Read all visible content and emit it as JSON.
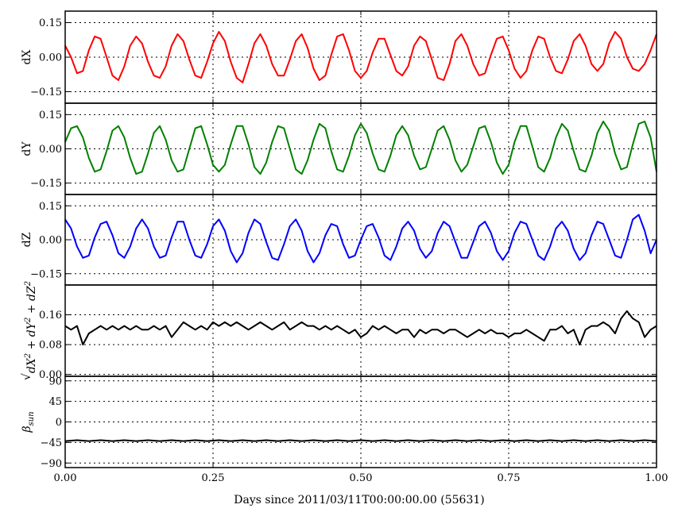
{
  "chart_data": {
    "type": "line",
    "xlabel": "Days since 2011/03/11T00:00:00.00 (55631)",
    "xlim": [
      0,
      1
    ],
    "xticks": [
      "0.00",
      "0.25",
      "0.50",
      "0.75",
      "1.00"
    ],
    "xtick_values": [
      0,
      0.25,
      0.5,
      0.75,
      1.0
    ],
    "grid": true,
    "panels": [
      {
        "id": "dx",
        "ylabel": "dX",
        "ylim": [
          -0.2,
          0.2
        ],
        "yticks": [
          "0.15",
          "0.00",
          "−0.15"
        ],
        "ytick_values": [
          0.15,
          0.0,
          -0.15
        ],
        "color": "#ff0000",
        "series": {
          "x": [
            0.0,
            0.01,
            0.02,
            0.03,
            0.04,
            0.05,
            0.06,
            0.07,
            0.08,
            0.09,
            0.1,
            0.11,
            0.12,
            0.13,
            0.14,
            0.15,
            0.16,
            0.17,
            0.18,
            0.19,
            0.2,
            0.21,
            0.22,
            0.23,
            0.24,
            0.25,
            0.26,
            0.27,
            0.28,
            0.29,
            0.3,
            0.31,
            0.32,
            0.33,
            0.34,
            0.35,
            0.36,
            0.37,
            0.38,
            0.39,
            0.4,
            0.41,
            0.42,
            0.43,
            0.44,
            0.45,
            0.46,
            0.47,
            0.48,
            0.49,
            0.5,
            0.51,
            0.52,
            0.53,
            0.54,
            0.55,
            0.56,
            0.57,
            0.58,
            0.59,
            0.6,
            0.61,
            0.62,
            0.63,
            0.64,
            0.65,
            0.66,
            0.67,
            0.68,
            0.69,
            0.7,
            0.71,
            0.72,
            0.73,
            0.74,
            0.75,
            0.76,
            0.77,
            0.78,
            0.79,
            0.8,
            0.81,
            0.82,
            0.83,
            0.84,
            0.85,
            0.86,
            0.87,
            0.88,
            0.89,
            0.9,
            0.91,
            0.92,
            0.93,
            0.94,
            0.95,
            0.96,
            0.97,
            0.98,
            0.99,
            1.0
          ],
          "y": [
            0.05,
            0.0,
            -0.07,
            -0.06,
            0.03,
            0.09,
            0.08,
            0.0,
            -0.08,
            -0.1,
            -0.04,
            0.05,
            0.09,
            0.06,
            -0.02,
            -0.08,
            -0.09,
            -0.04,
            0.05,
            0.1,
            0.07,
            -0.01,
            -0.08,
            -0.09,
            -0.02,
            0.06,
            0.11,
            0.07,
            -0.02,
            -0.09,
            -0.11,
            -0.03,
            0.06,
            0.1,
            0.05,
            -0.03,
            -0.08,
            -0.08,
            -0.01,
            0.07,
            0.1,
            0.04,
            -0.05,
            -0.1,
            -0.08,
            0.01,
            0.09,
            0.1,
            0.03,
            -0.06,
            -0.09,
            -0.06,
            0.02,
            0.08,
            0.08,
            0.01,
            -0.06,
            -0.08,
            -0.04,
            0.05,
            0.09,
            0.07,
            -0.01,
            -0.09,
            -0.1,
            -0.03,
            0.07,
            0.1,
            0.05,
            -0.03,
            -0.08,
            -0.07,
            0.01,
            0.08,
            0.09,
            0.03,
            -0.05,
            -0.09,
            -0.06,
            0.03,
            0.09,
            0.08,
            0.0,
            -0.06,
            -0.07,
            -0.01,
            0.07,
            0.1,
            0.05,
            -0.03,
            -0.06,
            -0.03,
            0.06,
            0.11,
            0.08,
            0.0,
            -0.05,
            -0.06,
            -0.03,
            0.03,
            0.1
          ]
        }
      },
      {
        "id": "dy",
        "ylabel": "dY",
        "ylim": [
          -0.2,
          0.2
        ],
        "yticks": [
          "0.15",
          "0.00",
          "−0.15"
        ],
        "ytick_values": [
          0.15,
          0.0,
          -0.15
        ],
        "color": "#008000",
        "series": {
          "x": [
            0.0,
            0.01,
            0.02,
            0.03,
            0.04,
            0.05,
            0.06,
            0.07,
            0.08,
            0.09,
            0.1,
            0.11,
            0.12,
            0.13,
            0.14,
            0.15,
            0.16,
            0.17,
            0.18,
            0.19,
            0.2,
            0.21,
            0.22,
            0.23,
            0.24,
            0.25,
            0.26,
            0.27,
            0.28,
            0.29,
            0.3,
            0.31,
            0.32,
            0.33,
            0.34,
            0.35,
            0.36,
            0.37,
            0.38,
            0.39,
            0.4,
            0.41,
            0.42,
            0.43,
            0.44,
            0.45,
            0.46,
            0.47,
            0.48,
            0.49,
            0.5,
            0.51,
            0.52,
            0.53,
            0.54,
            0.55,
            0.56,
            0.57,
            0.58,
            0.59,
            0.6,
            0.61,
            0.62,
            0.63,
            0.64,
            0.65,
            0.66,
            0.67,
            0.68,
            0.69,
            0.7,
            0.71,
            0.72,
            0.73,
            0.74,
            0.75,
            0.76,
            0.77,
            0.78,
            0.79,
            0.8,
            0.81,
            0.82,
            0.83,
            0.84,
            0.85,
            0.86,
            0.87,
            0.88,
            0.89,
            0.9,
            0.91,
            0.92,
            0.93,
            0.94,
            0.95,
            0.96,
            0.97,
            0.98,
            0.99,
            1.0
          ],
          "y": [
            0.03,
            0.09,
            0.1,
            0.05,
            -0.04,
            -0.1,
            -0.09,
            -0.01,
            0.08,
            0.1,
            0.05,
            -0.04,
            -0.11,
            -0.1,
            -0.02,
            0.07,
            0.1,
            0.04,
            -0.05,
            -0.1,
            -0.09,
            0.0,
            0.09,
            0.1,
            0.02,
            -0.07,
            -0.1,
            -0.07,
            0.02,
            0.1,
            0.1,
            0.02,
            -0.08,
            -0.11,
            -0.06,
            0.03,
            0.1,
            0.09,
            0.0,
            -0.09,
            -0.11,
            -0.05,
            0.04,
            0.11,
            0.09,
            -0.01,
            -0.09,
            -0.1,
            -0.03,
            0.06,
            0.11,
            0.07,
            -0.02,
            -0.09,
            -0.1,
            -0.03,
            0.06,
            0.1,
            0.06,
            -0.03,
            -0.09,
            -0.08,
            0.0,
            0.08,
            0.1,
            0.04,
            -0.05,
            -0.1,
            -0.07,
            0.01,
            0.09,
            0.1,
            0.03,
            -0.06,
            -0.11,
            -0.07,
            0.03,
            0.1,
            0.1,
            0.01,
            -0.08,
            -0.1,
            -0.04,
            0.05,
            0.11,
            0.08,
            -0.01,
            -0.09,
            -0.1,
            -0.03,
            0.07,
            0.12,
            0.08,
            -0.02,
            -0.09,
            -0.08,
            0.02,
            0.11,
            0.12,
            0.05,
            -0.1
          ]
        }
      },
      {
        "id": "dz",
        "ylabel": "dZ",
        "ylim": [
          -0.2,
          0.2
        ],
        "yticks": [
          "0.15",
          "0.00",
          "−0.15"
        ],
        "ytick_values": [
          0.15,
          0.0,
          -0.15
        ],
        "color": "#0000ff",
        "series": {
          "x": [
            0.0,
            0.01,
            0.02,
            0.03,
            0.04,
            0.05,
            0.06,
            0.07,
            0.08,
            0.09,
            0.1,
            0.11,
            0.12,
            0.13,
            0.14,
            0.15,
            0.16,
            0.17,
            0.18,
            0.19,
            0.2,
            0.21,
            0.22,
            0.23,
            0.24,
            0.25,
            0.26,
            0.27,
            0.28,
            0.29,
            0.3,
            0.31,
            0.32,
            0.33,
            0.34,
            0.35,
            0.36,
            0.37,
            0.38,
            0.39,
            0.4,
            0.41,
            0.42,
            0.43,
            0.44,
            0.45,
            0.46,
            0.47,
            0.48,
            0.49,
            0.5,
            0.51,
            0.52,
            0.53,
            0.54,
            0.55,
            0.56,
            0.57,
            0.58,
            0.59,
            0.6,
            0.61,
            0.62,
            0.63,
            0.64,
            0.65,
            0.66,
            0.67,
            0.68,
            0.69,
            0.7,
            0.71,
            0.72,
            0.73,
            0.74,
            0.75,
            0.76,
            0.77,
            0.78,
            0.79,
            0.8,
            0.81,
            0.82,
            0.83,
            0.84,
            0.85,
            0.86,
            0.87,
            0.88,
            0.89,
            0.9,
            0.91,
            0.92,
            0.93,
            0.94,
            0.95,
            0.96,
            0.97,
            0.98,
            0.99,
            1.0
          ],
          "y": [
            0.09,
            0.05,
            -0.03,
            -0.08,
            -0.07,
            0.01,
            0.07,
            0.08,
            0.02,
            -0.06,
            -0.08,
            -0.03,
            0.05,
            0.09,
            0.05,
            -0.03,
            -0.08,
            -0.07,
            0.01,
            0.08,
            0.08,
            0.0,
            -0.07,
            -0.08,
            -0.02,
            0.06,
            0.09,
            0.04,
            -0.05,
            -0.1,
            -0.06,
            0.03,
            0.09,
            0.07,
            -0.01,
            -0.08,
            -0.09,
            -0.02,
            0.06,
            0.09,
            0.04,
            -0.05,
            -0.1,
            -0.06,
            0.02,
            0.07,
            0.06,
            -0.02,
            -0.08,
            -0.07,
            0.0,
            0.06,
            0.07,
            0.01,
            -0.07,
            -0.09,
            -0.03,
            0.05,
            0.08,
            0.04,
            -0.04,
            -0.08,
            -0.05,
            0.03,
            0.08,
            0.06,
            -0.01,
            -0.08,
            -0.08,
            -0.01,
            0.06,
            0.08,
            0.03,
            -0.05,
            -0.09,
            -0.05,
            0.03,
            0.08,
            0.07,
            0.0,
            -0.07,
            -0.09,
            -0.03,
            0.05,
            0.08,
            0.04,
            -0.04,
            -0.09,
            -0.06,
            0.02,
            0.08,
            0.07,
            0.0,
            -0.07,
            -0.08,
            0.0,
            0.09,
            0.11,
            0.04,
            -0.06,
            0.0
          ]
        }
      },
      {
        "id": "mag",
        "ylabel": "sqrt(dX^2 + dY^2 + dZ^2)",
        "ylim": [
          -0.005,
          0.24
        ],
        "yticks": [
          "0.16",
          "0.08",
          "0.00"
        ],
        "ytick_values": [
          0.16,
          0.08,
          0.0
        ],
        "color": "#000000",
        "series": {
          "x": [
            0.0,
            0.01,
            0.02,
            0.03,
            0.04,
            0.05,
            0.06,
            0.07,
            0.08,
            0.09,
            0.1,
            0.11,
            0.12,
            0.13,
            0.14,
            0.15,
            0.16,
            0.17,
            0.18,
            0.19,
            0.2,
            0.21,
            0.22,
            0.23,
            0.24,
            0.25,
            0.26,
            0.27,
            0.28,
            0.29,
            0.3,
            0.31,
            0.32,
            0.33,
            0.34,
            0.35,
            0.36,
            0.37,
            0.38,
            0.39,
            0.4,
            0.41,
            0.42,
            0.43,
            0.44,
            0.45,
            0.46,
            0.47,
            0.48,
            0.49,
            0.5,
            0.51,
            0.52,
            0.53,
            0.54,
            0.55,
            0.56,
            0.57,
            0.58,
            0.59,
            0.6,
            0.61,
            0.62,
            0.63,
            0.64,
            0.65,
            0.66,
            0.67,
            0.68,
            0.69,
            0.7,
            0.71,
            0.72,
            0.73,
            0.74,
            0.75,
            0.76,
            0.77,
            0.78,
            0.79,
            0.8,
            0.81,
            0.82,
            0.83,
            0.84,
            0.85,
            0.86,
            0.87,
            0.88,
            0.89,
            0.9,
            0.91,
            0.92,
            0.93,
            0.94,
            0.95,
            0.96,
            0.97,
            0.98,
            0.99,
            1.0
          ],
          "y": [
            0.13,
            0.12,
            0.13,
            0.08,
            0.11,
            0.12,
            0.13,
            0.12,
            0.13,
            0.12,
            0.13,
            0.12,
            0.13,
            0.12,
            0.12,
            0.13,
            0.12,
            0.13,
            0.1,
            0.12,
            0.14,
            0.13,
            0.12,
            0.13,
            0.12,
            0.14,
            0.13,
            0.14,
            0.13,
            0.14,
            0.13,
            0.12,
            0.13,
            0.14,
            0.13,
            0.12,
            0.13,
            0.14,
            0.12,
            0.13,
            0.14,
            0.13,
            0.13,
            0.12,
            0.13,
            0.12,
            0.13,
            0.12,
            0.11,
            0.12,
            0.1,
            0.11,
            0.13,
            0.12,
            0.13,
            0.12,
            0.11,
            0.12,
            0.12,
            0.1,
            0.12,
            0.11,
            0.12,
            0.12,
            0.11,
            0.12,
            0.12,
            0.11,
            0.1,
            0.11,
            0.12,
            0.11,
            0.12,
            0.11,
            0.11,
            0.1,
            0.11,
            0.11,
            0.12,
            0.11,
            0.1,
            0.09,
            0.12,
            0.12,
            0.13,
            0.11,
            0.12,
            0.08,
            0.12,
            0.13,
            0.13,
            0.14,
            0.13,
            0.11,
            0.15,
            0.17,
            0.15,
            0.14,
            0.1,
            0.12,
            0.13
          ]
        }
      },
      {
        "id": "beta",
        "ylabel": "βsun",
        "ylim": [
          -100,
          100
        ],
        "yticks": [
          "90",
          "45",
          "0",
          "−45",
          "−90"
        ],
        "ytick_values": [
          90,
          45,
          0,
          -45,
          -90
        ],
        "color": "#000000",
        "series": {
          "x": [
            0.0,
            0.02,
            0.04,
            0.06,
            0.08,
            0.1,
            0.12,
            0.14,
            0.16,
            0.18,
            0.2,
            0.22,
            0.24,
            0.26,
            0.28,
            0.3,
            0.32,
            0.34,
            0.36,
            0.38,
            0.4,
            0.42,
            0.44,
            0.46,
            0.48,
            0.5,
            0.52,
            0.54,
            0.56,
            0.58,
            0.6,
            0.62,
            0.64,
            0.66,
            0.68,
            0.7,
            0.72,
            0.74,
            0.76,
            0.78,
            0.8,
            0.82,
            0.84,
            0.86,
            0.88,
            0.9,
            0.92,
            0.94,
            0.96,
            0.98,
            1.0
          ],
          "y": [
            -42,
            -40,
            -42,
            -40,
            -42,
            -40,
            -42,
            -40,
            -42,
            -40,
            -42,
            -40,
            -42,
            -40,
            -42,
            -40,
            -42,
            -40,
            -42,
            -40,
            -42,
            -40,
            -42,
            -40,
            -42,
            -40,
            -42,
            -40,
            -42,
            -40,
            -42,
            -40,
            -42,
            -40,
            -42,
            -40,
            -42,
            -40,
            -42,
            -40,
            -42,
            -40,
            -42,
            -40,
            -42,
            -40,
            -42,
            -40,
            -42,
            -40,
            -42
          ]
        }
      }
    ]
  }
}
